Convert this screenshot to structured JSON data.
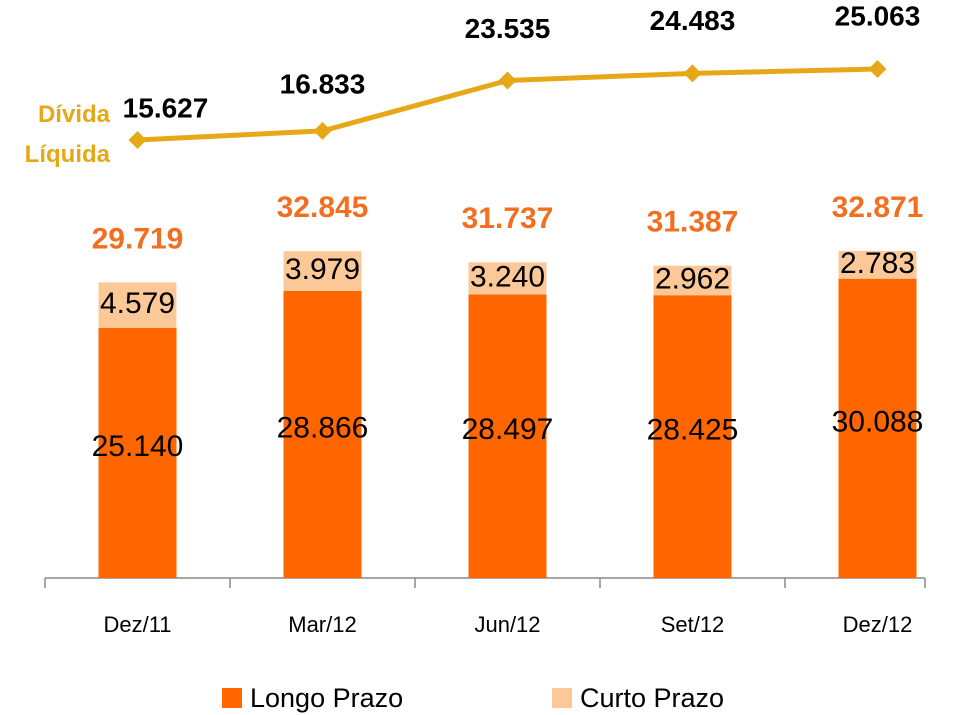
{
  "chart_data": {
    "type": "bar",
    "stacked": true,
    "categories": [
      "Dez/11",
      "Mar/12",
      "Jun/12",
      "Set/12",
      "Dez/12"
    ],
    "series": [
      {
        "name": "Longo Prazo",
        "color": "#ff6600",
        "values": [
          25140,
          28866,
          28497,
          28425,
          30088
        ],
        "value_labels": [
          "25.140",
          "28.866",
          "28.497",
          "28.425",
          "30.088"
        ]
      },
      {
        "name": "Curto Prazo",
        "color": "#fdc897",
        "values": [
          4579,
          3979,
          3240,
          2962,
          2783
        ],
        "value_labels": [
          "4.579",
          "3.979",
          "3.240",
          "2.962",
          "2.783"
        ]
      },
      {
        "name": "Dívida Líquida",
        "type": "line",
        "color": "#e6a817",
        "values": [
          15627,
          16833,
          23535,
          24483,
          25063
        ],
        "value_labels": [
          "15.627",
          "16.833",
          "23.535",
          "24.483",
          "25.063"
        ]
      }
    ],
    "totals": {
      "color": "#f26f1f",
      "values": [
        29719,
        32845,
        31737,
        31387,
        32871
      ],
      "value_labels": [
        "29.719",
        "32.845",
        "31.737",
        "31.387",
        "32.871"
      ]
    }
  }
}
